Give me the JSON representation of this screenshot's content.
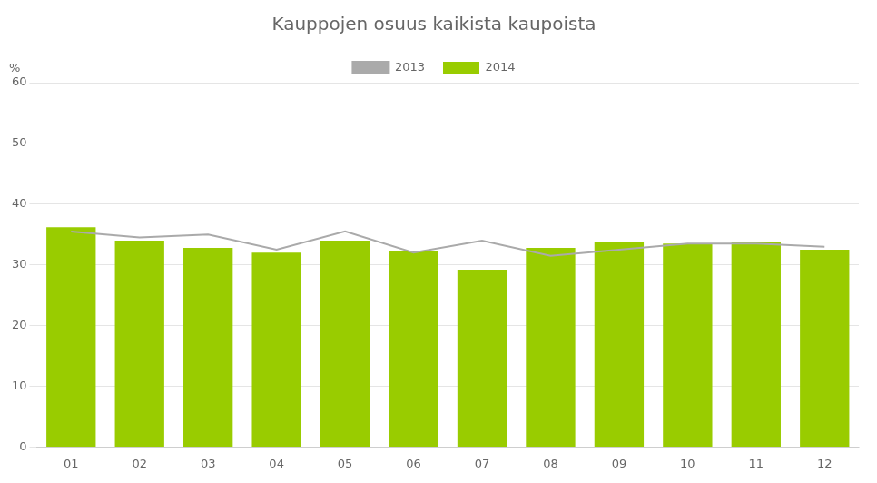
{
  "chart_data": {
    "type": "bar",
    "title": "Kauppojen osuus kaikista kaupoista",
    "ylabel": "%",
    "categories": [
      "01",
      "02",
      "03",
      "04",
      "05",
      "06",
      "07",
      "08",
      "09",
      "10",
      "11",
      "12"
    ],
    "series": [
      {
        "name": "2014",
        "type": "bar",
        "color": "#99cc00",
        "values": [
          36.2,
          34.0,
          32.8,
          32.0,
          34.0,
          32.2,
          29.2,
          32.8,
          33.8,
          33.5,
          33.8,
          32.5
        ]
      },
      {
        "name": "2013",
        "type": "line",
        "color": "#aaaaaa",
        "values": [
          35.5,
          34.5,
          35.0,
          32.5,
          35.5,
          32.0,
          34.0,
          31.5,
          32.5,
          33.5,
          33.5,
          33.0
        ]
      }
    ],
    "ylim": [
      0,
      60
    ],
    "yticks": [
      0,
      10,
      20,
      30,
      40,
      50,
      60
    ],
    "grid": true,
    "legend": "top"
  }
}
